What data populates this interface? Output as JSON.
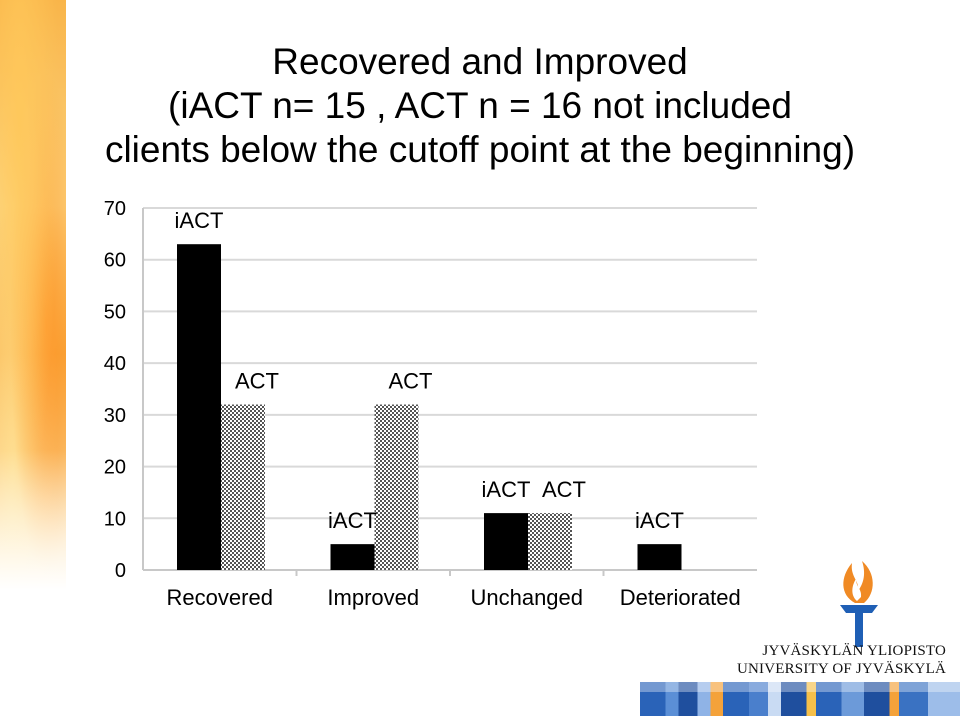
{
  "slide": {
    "title_lines": [
      "Recovered and Improved",
      "(iACT n= 15 , ACT n = 16 not included",
      "clients below the cutoff point at the beginning)"
    ]
  },
  "logo": {
    "line1": "JYVÄSKYLÄN YLIOPISTO",
    "line2": "UNIVERSITY OF JYVÄSKYLÄ"
  },
  "colors": {
    "iact": "#000000",
    "act_pattern": "checkered-gray",
    "grid": "#d9d9d9",
    "flame": "#f08a24",
    "torch": "#1f5fb5"
  },
  "chart_data": {
    "type": "bar",
    "categories": [
      "Recovered",
      "Improved",
      "Unchanged",
      "Deteriorated"
    ],
    "series": [
      {
        "name": "iACT",
        "values": [
          63,
          5,
          11,
          5
        ]
      },
      {
        "name": "ACT",
        "values": [
          32,
          32,
          11,
          0
        ]
      }
    ],
    "bar_labels": [
      [
        "iACT",
        "ACT"
      ],
      [
        "iACT",
        "ACT"
      ],
      [
        "iACT",
        "ACT"
      ],
      [
        "iACT",
        ""
      ]
    ],
    "title": "",
    "xlabel": "",
    "ylabel": "",
    "ylim": [
      0,
      70
    ],
    "yticks": [
      "0",
      "10",
      "20",
      "30",
      "40",
      "50",
      "60",
      "70"
    ],
    "grid": true,
    "legend": "none"
  }
}
